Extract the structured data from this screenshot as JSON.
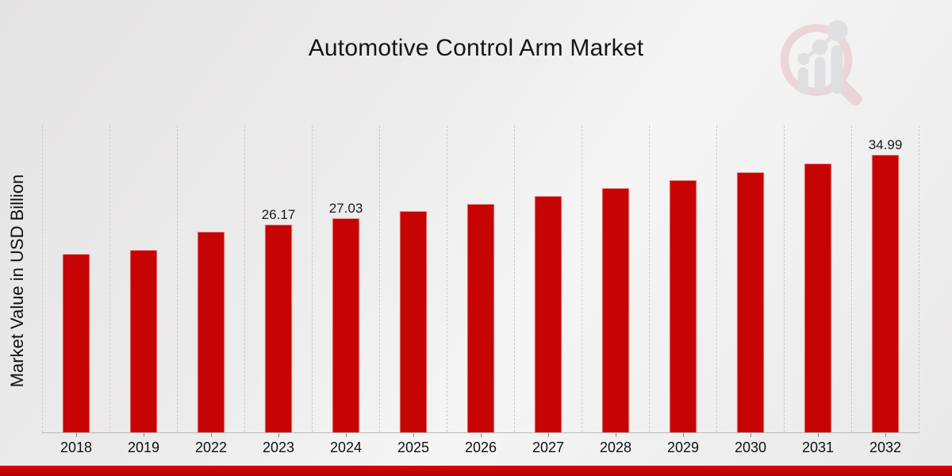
{
  "header": {
    "title": "Automotive Control Arm Market",
    "logo_icon": "magnifier-bar-chart-watermark-icon"
  },
  "chart_data": {
    "type": "bar",
    "title": "Automotive Control Arm Market",
    "xlabel": "",
    "ylabel": "Market Value in USD Billion",
    "categories": [
      "2018",
      "2019",
      "2022",
      "2023",
      "2024",
      "2025",
      "2026",
      "2027",
      "2028",
      "2029",
      "2030",
      "2031",
      "2032"
    ],
    "values": [
      22.55,
      23.03,
      25.34,
      26.17,
      27.03,
      27.92,
      28.83,
      29.78,
      30.76,
      31.77,
      32.81,
      33.88,
      34.99
    ],
    "data_labels": [
      "",
      "",
      "",
      "26.17",
      "27.03",
      "",
      "",
      "",
      "",
      "",
      "",
      "",
      "34.99"
    ],
    "ylim": [
      0,
      38.7
    ],
    "grid": "vertical-dashed",
    "legend": "none",
    "bar_color": "#c70404",
    "axis_line_color": "#b9b9b9",
    "gridline_color": "#cccccc"
  },
  "footer": {
    "band_color": "#c30404"
  }
}
